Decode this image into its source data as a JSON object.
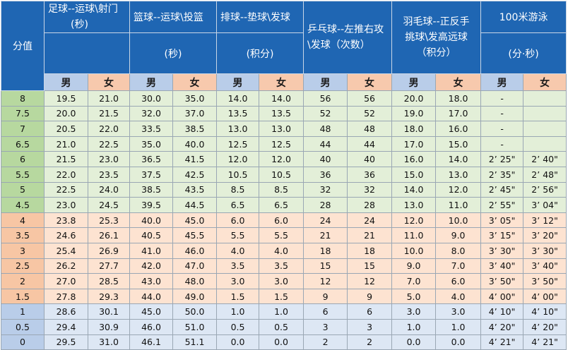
{
  "headers": {
    "score": "分值",
    "football_a": "足球--运球\\射门",
    "football_b": "(秒)",
    "basketball_a": "篮球--运球\\投篮",
    "basketball_b": "(秒)",
    "volleyball_a": "排球--垫球\\发球",
    "volleyball_b": "(积分)",
    "pingpong": "乒乓球--左推右攻\\发球（次数）",
    "badminton_a": "羽毛球--正反手",
    "badminton_b": "挑球\\发高远球",
    "badminton_c": "（积分）",
    "swim_a": "100米游泳",
    "swim_b": "(分·秒)",
    "male": "男",
    "female": "女"
  },
  "rows": [
    {
      "score": "8",
      "fm": "19.5",
      "ff": "21.0",
      "bm": "30.0",
      "bf": "35.0",
      "vm": "14.0",
      "vf": "14.0",
      "pm": "56",
      "pf": "56",
      "dm": "20.0",
      "df": "18.0",
      "sm": "-",
      "sf": ""
    },
    {
      "score": "7.5",
      "fm": "20.0",
      "ff": "21.5",
      "bm": "32.0",
      "bf": "37.0",
      "vm": "13.5",
      "vf": "13.5",
      "pm": "52",
      "pf": "52",
      "dm": "19.0",
      "df": "17.0",
      "sm": "-",
      "sf": ""
    },
    {
      "score": "7",
      "fm": "20.5",
      "ff": "22.0",
      "bm": "33.5",
      "bf": "38.5",
      "vm": "13.0",
      "vf": "13.0",
      "pm": "48",
      "pf": "48",
      "dm": "18.0",
      "df": "16.0",
      "sm": "-",
      "sf": ""
    },
    {
      "score": "6.5",
      "fm": "21.0",
      "ff": "22.5",
      "bm": "35.0",
      "bf": "40.0",
      "vm": "12.5",
      "vf": "12.5",
      "pm": "44",
      "pf": "44",
      "dm": "17.0",
      "df": "15.0",
      "sm": "-",
      "sf": ""
    },
    {
      "score": "6",
      "fm": "21.5",
      "ff": "23.0",
      "bm": "36.5",
      "bf": "41.5",
      "vm": "12.0",
      "vf": "12.0",
      "pm": "40",
      "pf": "40",
      "dm": "16.0",
      "df": "14.0",
      "sm": "2’ 25\"",
      "sf": "2’ 40\""
    },
    {
      "score": "5.5",
      "fm": "22.0",
      "ff": "23.5",
      "bm": "37.5",
      "bf": "42.5",
      "vm": "10.5",
      "vf": "10.5",
      "pm": "36",
      "pf": "36",
      "dm": "15.0",
      "df": "13.0",
      "sm": "2’ 35\"",
      "sf": "2’ 48\""
    },
    {
      "score": "5",
      "fm": "22.5",
      "ff": "24.0",
      "bm": "38.5",
      "bf": "43.5",
      "vm": "8.5",
      "vf": "8.5",
      "pm": "32",
      "pf": "32",
      "dm": "14.0",
      "df": "12.0",
      "sm": "2’ 45\"",
      "sf": "2’ 56\""
    },
    {
      "score": "4.5",
      "fm": "23.0",
      "ff": "24.5",
      "bm": "39.5",
      "bf": "44.5",
      "vm": "6.5",
      "vf": "6.5",
      "pm": "28",
      "pf": "28",
      "dm": "13.0",
      "df": "11.0",
      "sm": "2’ 55\"",
      "sf": "3’ 04\""
    },
    {
      "score": "4",
      "fm": "23.8",
      "ff": "25.3",
      "bm": "40.0",
      "bf": "45.0",
      "vm": "6.0",
      "vf": "6.0",
      "pm": "24",
      "pf": "24",
      "dm": "12.0",
      "df": "10.0",
      "sm": "3’ 05\"",
      "sf": "3’ 12\""
    },
    {
      "score": "3.5",
      "fm": "24.6",
      "ff": "26.1",
      "bm": "40.5",
      "bf": "45.5",
      "vm": "5.5",
      "vf": "5.5",
      "pm": "21",
      "pf": "21",
      "dm": "11.0",
      "df": "9.0",
      "sm": "3’ 15\"",
      "sf": "3’ 20\""
    },
    {
      "score": "3",
      "fm": "25.4",
      "ff": "26.9",
      "bm": "41.0",
      "bf": "46.0",
      "vm": "4.0",
      "vf": "4.0",
      "pm": "18",
      "pf": "18",
      "dm": "10.0",
      "df": "8.0",
      "sm": "3’ 30\"",
      "sf": "3’ 30\""
    },
    {
      "score": "2.5",
      "fm": "26.2",
      "ff": "27.7",
      "bm": "42.0",
      "bf": "47.0",
      "vm": "3.5",
      "vf": "3.5",
      "pm": "15",
      "pf": "15",
      "dm": "9.0",
      "df": "7.0",
      "sm": "3’ 40\"",
      "sf": "3’ 40\""
    },
    {
      "score": "2",
      "fm": "27.0",
      "ff": "28.5",
      "bm": "43.0",
      "bf": "48.0",
      "vm": "3.0",
      "vf": "3.0",
      "pm": "12",
      "pf": "12",
      "dm": "7.0",
      "df": "6.0",
      "sm": "3’ 50\"",
      "sf": "3’ 50\""
    },
    {
      "score": "1.5",
      "fm": "27.8",
      "ff": "29.3",
      "bm": "44.0",
      "bf": "49.0",
      "vm": "1.5",
      "vf": "1.5",
      "pm": "9",
      "pf": "9",
      "dm": "5.0",
      "df": "4.0",
      "sm": "4’ 00\"",
      "sf": "4’ 00\""
    },
    {
      "score": "1",
      "fm": "28.6",
      "ff": "30.1",
      "bm": "45.0",
      "bf": "50.0",
      "vm": "1.0",
      "vf": "1.0",
      "pm": "6",
      "pf": "6",
      "dm": "3.0",
      "df": "3.0",
      "sm": "4’ 10\"",
      "sf": "4’ 10\""
    },
    {
      "score": "0.5",
      "fm": "29.4",
      "ff": "30.9",
      "bm": "46.0",
      "bf": "51.0",
      "vm": "0.5",
      "vf": "0.5",
      "pm": "3",
      "pf": "3",
      "dm": "1.0",
      "df": "1.0",
      "sm": "4’ 20\"",
      "sf": "4’ 20\""
    },
    {
      "score": "0",
      "fm": "29.5",
      "ff": "31.0",
      "bm": "46.1",
      "bf": "51.1",
      "vm": "0.0",
      "vf": "0.0",
      "pm": "2",
      "pf": "2",
      "dm": "0.0",
      "df": "0.0",
      "sm": "4’ 21\"",
      "sf": "4’ 21\""
    }
  ],
  "colors": {
    "header_bg": "#1f66b3",
    "male_header": "#b9cde9",
    "female_header": "#f7c9ad",
    "band_green": "#b7d89f",
    "band_orange": "#f7c6a4",
    "band_blue": "#b9cde9"
  }
}
